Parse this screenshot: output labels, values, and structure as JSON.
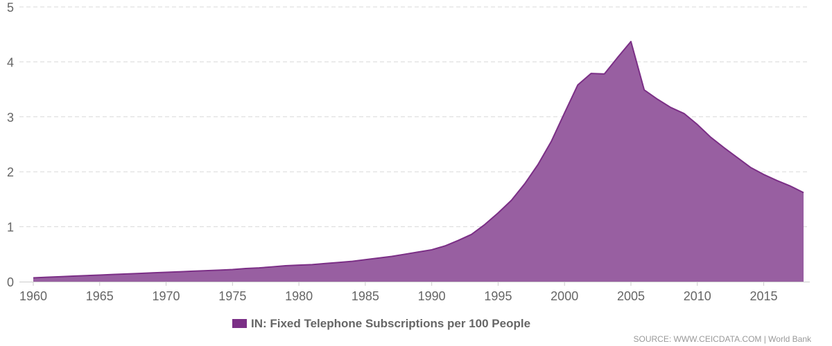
{
  "chart_data": {
    "type": "area",
    "series": [
      {
        "name": "IN: Fixed Telephone Subscriptions per 100 People",
        "color": "#7b2f86",
        "fill": "#985fa1",
        "x": [
          1960,
          1961,
          1962,
          1963,
          1964,
          1965,
          1966,
          1967,
          1968,
          1969,
          1970,
          1971,
          1972,
          1973,
          1974,
          1975,
          1976,
          1977,
          1978,
          1979,
          1980,
          1981,
          1982,
          1983,
          1984,
          1985,
          1986,
          1987,
          1988,
          1989,
          1990,
          1991,
          1992,
          1993,
          1994,
          1995,
          1996,
          1997,
          1998,
          1999,
          2000,
          2001,
          2002,
          2003,
          2004,
          2005,
          2006,
          2007,
          2008,
          2009,
          2010,
          2011,
          2012,
          2013,
          2014,
          2015,
          2016,
          2017,
          2018
        ],
        "values": [
          0.07,
          0.08,
          0.09,
          0.1,
          0.11,
          0.12,
          0.13,
          0.14,
          0.15,
          0.16,
          0.17,
          0.18,
          0.19,
          0.2,
          0.21,
          0.22,
          0.24,
          0.25,
          0.27,
          0.29,
          0.3,
          0.31,
          0.33,
          0.35,
          0.37,
          0.4,
          0.43,
          0.46,
          0.5,
          0.54,
          0.58,
          0.65,
          0.75,
          0.86,
          1.04,
          1.25,
          1.48,
          1.78,
          2.13,
          2.55,
          3.07,
          3.58,
          3.79,
          3.78,
          4.08,
          4.37,
          3.49,
          3.32,
          3.17,
          3.06,
          2.86,
          2.63,
          2.44,
          2.26,
          2.08,
          1.95,
          1.84,
          1.74,
          1.62
        ]
      }
    ],
    "xticks": [
      1960,
      1965,
      1970,
      1975,
      1980,
      1985,
      1990,
      1995,
      2000,
      2005,
      2010,
      2015
    ],
    "yticks": [
      0,
      1,
      2,
      3,
      4,
      5
    ],
    "xlim": [
      1960,
      2018
    ],
    "ylim": [
      0,
      5
    ],
    "grid": true,
    "legend_position": "bottom-center"
  },
  "legend": {
    "label": "IN: Fixed Telephone Subscriptions per 100 People",
    "color": "#7b2f86"
  },
  "source": "SOURCE: WWW.CEICDATA.COM | World Bank"
}
